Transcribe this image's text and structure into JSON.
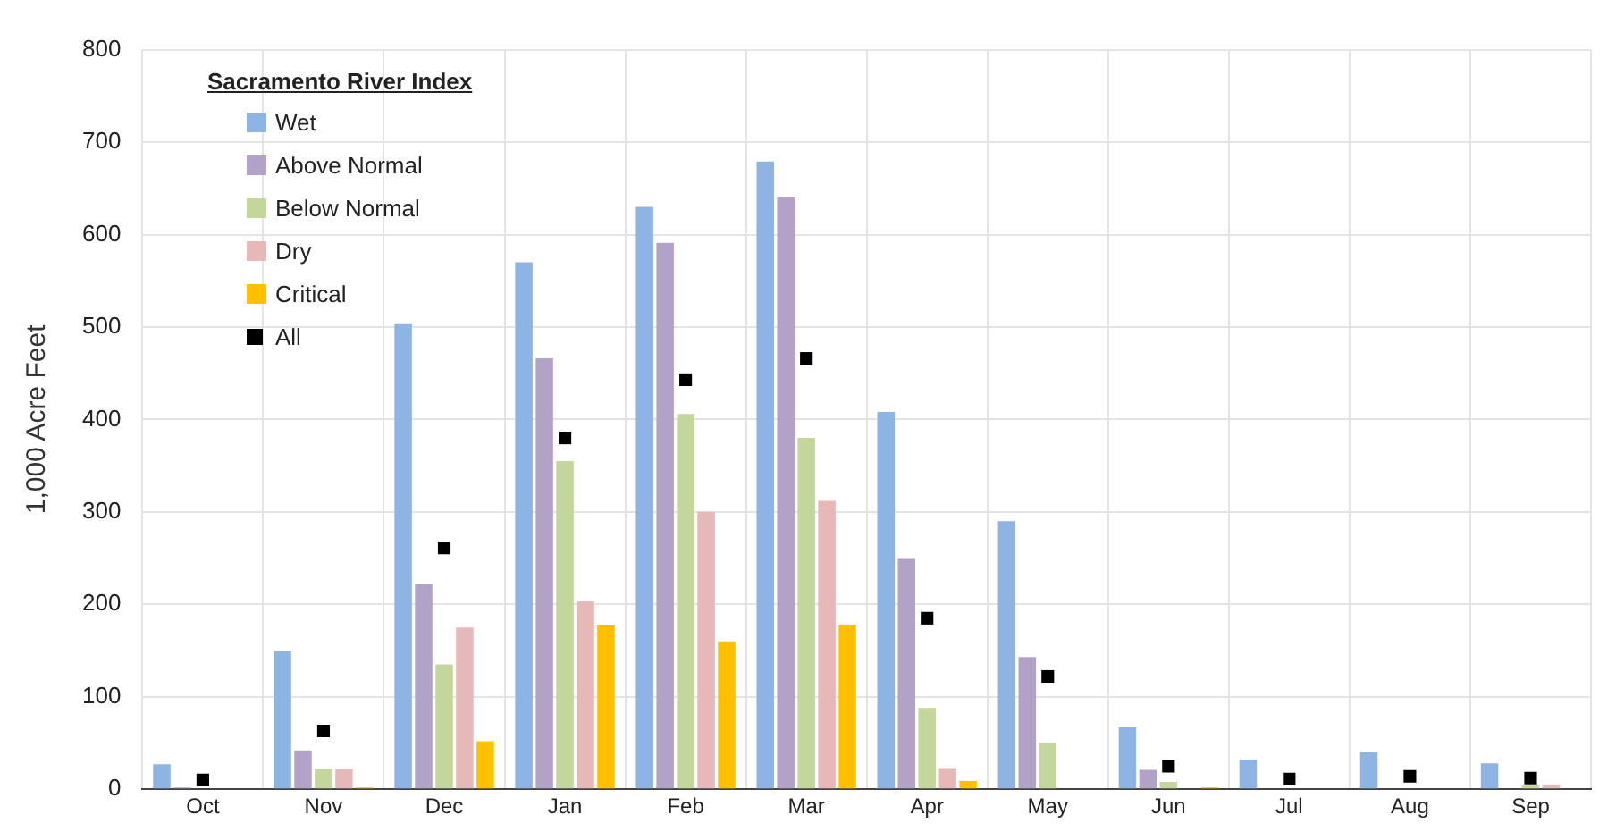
{
  "chart_data": {
    "type": "bar",
    "ylabel": "1,000 Acre Feet",
    "legend_title": "Sacramento River Index",
    "legend": "top left",
    "grid": true,
    "categories": [
      "Oct",
      "Nov",
      "Dec",
      "Jan",
      "Feb",
      "Mar",
      "Apr",
      "May",
      "Jun",
      "Jul",
      "Aug",
      "Sep"
    ],
    "ylim": [
      0,
      800
    ],
    "yticks": [
      0,
      100,
      200,
      300,
      400,
      500,
      600,
      700,
      800
    ],
    "series": [
      {
        "name": "Wet",
        "color": "#8db4e2",
        "values": [
          27,
          150,
          503,
          570,
          630,
          679,
          408,
          290,
          67,
          32,
          40,
          28
        ]
      },
      {
        "name": "Above Normal",
        "color": "#b3a2c7",
        "values": [
          2,
          42,
          222,
          466,
          591,
          640,
          250,
          143,
          21,
          0,
          0,
          0
        ]
      },
      {
        "name": "Below Normal",
        "color": "#c3d69b",
        "values": [
          0,
          22,
          135,
          355,
          406,
          380,
          88,
          50,
          8,
          0,
          0,
          4
        ]
      },
      {
        "name": "Dry",
        "color": "#e6b9b8",
        "values": [
          0,
          22,
          175,
          204,
          300,
          312,
          23,
          0,
          0,
          0,
          0,
          5
        ]
      },
      {
        "name": "Critical",
        "color": "#ffc000",
        "values": [
          0,
          2,
          52,
          178,
          160,
          178,
          9,
          0,
          2,
          0,
          0,
          0
        ]
      },
      {
        "name": "All",
        "color": "#000000",
        "type": "scatter",
        "marker": "square",
        "x": [
          "Oct",
          "Nov",
          "Dec",
          "Jan",
          "Feb",
          "Mar",
          "Apr",
          "May",
          "Jun",
          "Jul",
          "Aug",
          "Sep"
        ],
        "values": [
          10,
          63,
          261,
          380,
          443,
          466,
          185,
          122,
          25,
          11,
          14,
          12
        ]
      }
    ]
  }
}
